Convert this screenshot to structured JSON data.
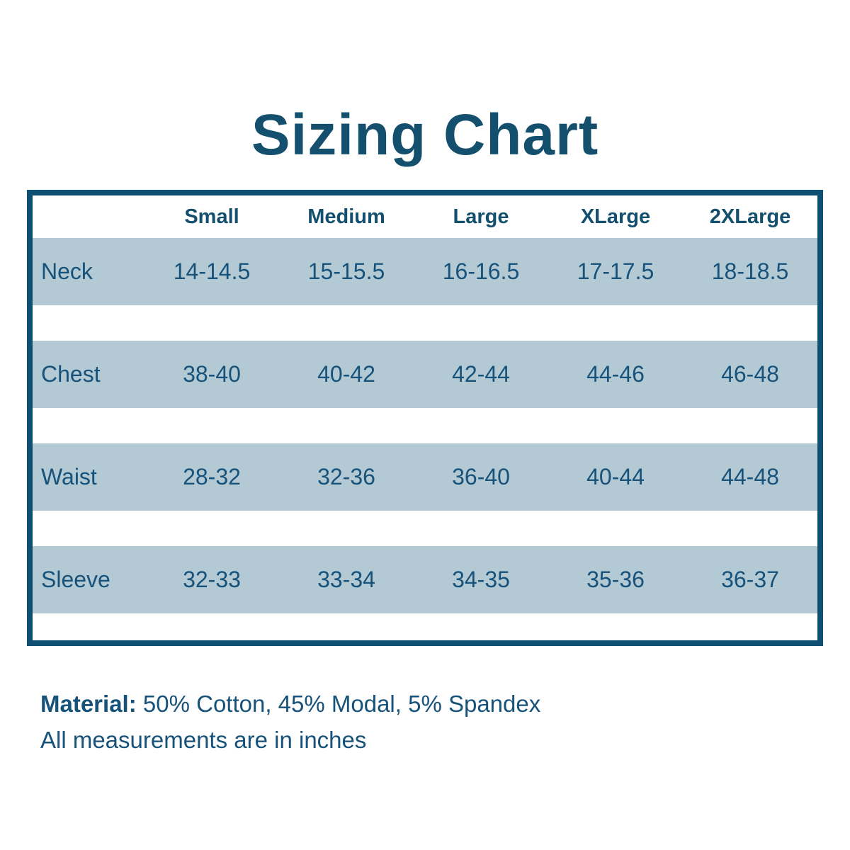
{
  "title": "Sizing Chart",
  "colors": {
    "text": "#17527a",
    "title_text": "#14506e",
    "row_band": "#b3c9d4",
    "table_border": "#0f4f72",
    "background": "#ffffff"
  },
  "table": {
    "columns": [
      "Small",
      "Medium",
      "Large",
      "XLarge",
      "2XLarge"
    ],
    "rows": [
      {
        "label": "Neck",
        "values": [
          "14-14.5",
          "15-15.5",
          "16-16.5",
          "17-17.5",
          "18-18.5"
        ]
      },
      {
        "label": "Chest",
        "values": [
          "38-40",
          "40-42",
          "42-44",
          "44-46",
          "46-48"
        ]
      },
      {
        "label": "Waist",
        "values": [
          "28-32",
          "32-36",
          "36-40",
          "40-44",
          "44-48"
        ]
      },
      {
        "label": "Sleeve",
        "values": [
          "32-33",
          "33-34",
          "34-35",
          "35-36",
          "36-37"
        ]
      }
    ]
  },
  "footer": {
    "material_label": "Material:",
    "material_value": "50% Cotton, 45% Modal, 5% Spandex",
    "note": "All measurements are in inches"
  },
  "chart_data": {
    "type": "table",
    "title": "Sizing Chart",
    "columns": [
      "",
      "Small",
      "Medium",
      "Large",
      "XLarge",
      "2XLarge"
    ],
    "rows": [
      [
        "Neck",
        "14-14.5",
        "15-15.5",
        "16-16.5",
        "17-17.5",
        "18-18.5"
      ],
      [
        "Chest",
        "38-40",
        "40-42",
        "42-44",
        "44-46",
        "46-48"
      ],
      [
        "Waist",
        "28-32",
        "32-36",
        "36-40",
        "40-44",
        "44-48"
      ],
      [
        "Sleeve",
        "32-33",
        "33-34",
        "34-35",
        "35-36",
        "36-37"
      ]
    ],
    "units": "inches"
  }
}
